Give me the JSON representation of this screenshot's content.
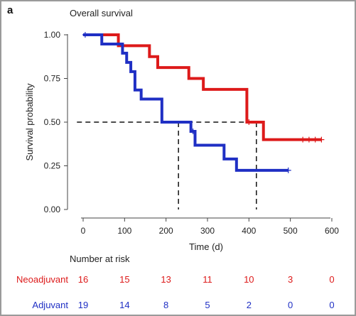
{
  "figure": {
    "panel_letter": "a"
  },
  "chart_data": {
    "type": "line",
    "title": "Overall survival",
    "xlabel": "Time (d)",
    "ylabel": "Survival probability",
    "xlim": [
      -15,
      630
    ],
    "ylim": [
      0,
      1
    ],
    "x_ticks": [
      "0",
      "100",
      "200",
      "300",
      "400",
      "500",
      "600"
    ],
    "y_ticks": [
      "0.00",
      "0.25",
      "0.50",
      "0.75",
      "1.00"
    ],
    "grid": false,
    "series": [
      {
        "name": "Neoadjuvant",
        "color": "#dd1a1a",
        "steps": [
          [
            0,
            1.0
          ],
          [
            85,
            0.9375
          ],
          [
            160,
            0.875
          ],
          [
            180,
            0.8125
          ],
          [
            255,
            0.75
          ],
          [
            290,
            0.6875
          ],
          [
            395,
            0.5
          ],
          [
            435,
            0.4
          ],
          [
            575,
            0.4
          ]
        ],
        "censor_x": [
          400,
          530,
          545,
          560,
          575
        ]
      },
      {
        "name": "Adjuvant",
        "color": "#1f2fc4",
        "steps": [
          [
            0,
            1.0
          ],
          [
            45,
            0.947
          ],
          [
            95,
            0.895
          ],
          [
            105,
            0.842
          ],
          [
            115,
            0.789
          ],
          [
            125,
            0.684
          ],
          [
            140,
            0.632
          ],
          [
            190,
            0.5
          ],
          [
            260,
            0.447
          ],
          [
            270,
            0.368
          ],
          [
            340,
            0.289
          ],
          [
            370,
            0.224
          ],
          [
            495,
            0.224
          ]
        ],
        "censor_x": [
          5,
          265,
          495
        ]
      }
    ],
    "annotations": {
      "median_line_y": 0.5,
      "median_line_x_end": 418,
      "median_drop_x": [
        230,
        418
      ]
    },
    "risk_table": {
      "title": "Number at risk",
      "times": [
        0,
        100,
        200,
        300,
        400,
        500,
        600
      ],
      "rows": [
        {
          "label": "Neoadjuvant",
          "color": "#dd1a1a",
          "values": [
            "16",
            "15",
            "13",
            "11",
            "10",
            "3",
            "0"
          ]
        },
        {
          "label": "Adjuvant",
          "color": "#1f2fc4",
          "values": [
            "19",
            "14",
            "8",
            "5",
            "2",
            "0",
            "0"
          ]
        }
      ]
    }
  }
}
